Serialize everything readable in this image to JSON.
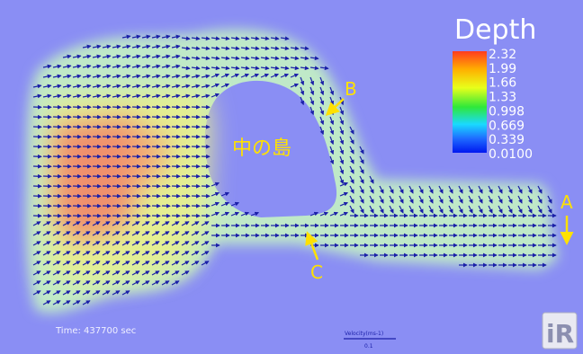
{
  "legend": {
    "title": "Depth",
    "ticks": [
      "2.32",
      "1.99",
      "1.66",
      "1.33",
      "0.998",
      "0.669",
      "0.339",
      "0.0100"
    ],
    "colors": [
      "#ff3b1f",
      "#ffb000",
      "#e8ff1a",
      "#2fe83a",
      "#1ad9ff",
      "#1f6bff",
      "#0018f0"
    ]
  },
  "annotations": {
    "island_label": "中の島",
    "marker_a": "A",
    "marker_b": "B",
    "marker_c": "C"
  },
  "status": {
    "time_text": "Time: 437700 sec"
  },
  "scale_bar": {
    "label": "Velocity(ms-1)",
    "value": "0.1"
  },
  "logo": {
    "text": "iR"
  },
  "colors": {
    "background": "#8a8ef4",
    "arrow": "#1a1fa8",
    "annotation": "#ffe100",
    "water_edge": "#bfe9c8",
    "water_mid": "#e8ef8c",
    "water_deep": "#f08a6a"
  }
}
